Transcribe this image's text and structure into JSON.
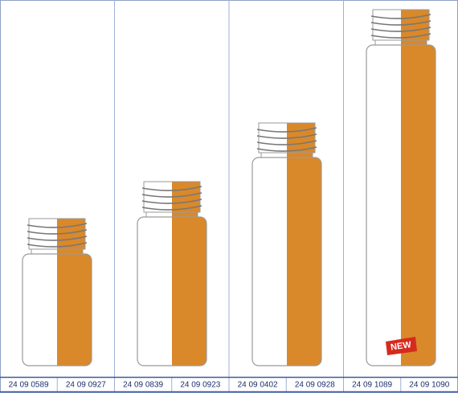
{
  "products": [
    {
      "codes": [
        "24 09 0589",
        "24 09 0927"
      ]
    },
    {
      "codes": [
        "24 09 0839",
        "24 09 0923"
      ]
    },
    {
      "codes": [
        "24 09 0402",
        "24 09 0928"
      ]
    },
    {
      "codes": [
        "24 09 1089",
        "24 09 1090"
      ]
    }
  ],
  "badge": "NEW"
}
